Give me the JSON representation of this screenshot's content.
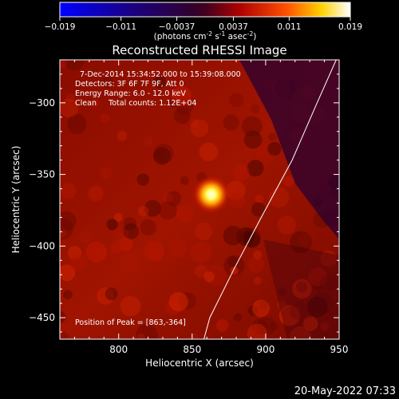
{
  "chart_data": {
    "type": "heatmap",
    "title": "Reconstructed RHESSI Image",
    "xlabel": "Heliocentric X (arcsec)",
    "ylabel": "Heliocentric Y (arcsec)",
    "xlim": [
      760,
      950
    ],
    "ylim": [
      -465,
      -270
    ],
    "x_ticks": [
      "800",
      "850",
      "900",
      "950"
    ],
    "x_tick_values": [
      800,
      850,
      900,
      950
    ],
    "y_ticks": [
      "-300",
      "-350",
      "-400",
      "-450"
    ],
    "y_tick_values": [
      -300,
      -350,
      -400,
      -450
    ],
    "colorbar": {
      "min": -0.019,
      "max": 0.019,
      "tick_labels": [
        "-0.019",
        "-0.011",
        "-0.0037",
        "0.0037",
        "0.011",
        "0.019"
      ],
      "tick_values": [
        -0.019,
        -0.011,
        -0.0037,
        0.0037,
        0.011,
        0.019
      ],
      "unit_label": "(photons cm",
      "unit_exp1": "-2",
      "unit_mid": " s",
      "unit_exp2": "-1",
      "unit_mid2": " asec",
      "unit_exp3": "-2",
      "unit_end": ")"
    },
    "annotations": [
      "7-Dec-2014 15:34:52.000 to 15:39:08.000",
      "Detectors: 3F 6F 7F 9F, Att 0",
      "Energy Range: 6.0 - 12.0 keV",
      "Clean     Total counts: 1.12E+04"
    ],
    "peak": {
      "label": "Position of Peak = [863,-364]",
      "x": 863,
      "y": -364
    },
    "limb_curve": [
      [
        948,
        -270
      ],
      [
        935,
        -300
      ],
      [
        918,
        -340
      ],
      [
        897,
        -380
      ],
      [
        879,
        -415
      ],
      [
        862,
        -450
      ],
      [
        858,
        -465
      ]
    ]
  },
  "footer": {
    "timestamp": "20-May-2022 07:33"
  },
  "colors": {
    "background": "#000000",
    "text": "#ffffff",
    "peak": "#ffffff",
    "limb": "#ffffff"
  }
}
